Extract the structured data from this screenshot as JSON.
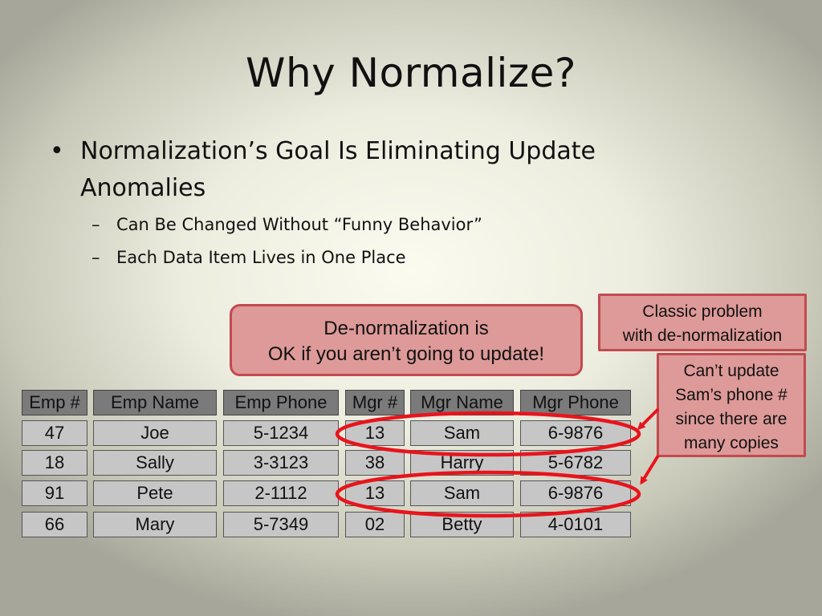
{
  "slide": {
    "title": "Why Normalize?",
    "bullet": {
      "marker": "•",
      "text": "Normalization’s Goal Is Eliminating Update Anomalies",
      "subitems": [
        {
          "marker": "–",
          "text": "Can Be Changed Without “Funny Behavior”"
        },
        {
          "marker": "–",
          "text": "Each Data Item Lives in One Place"
        }
      ]
    }
  },
  "callouts": {
    "denormalization": {
      "line1": "De-normalization is",
      "line2": "OK if you aren’t going to update!"
    },
    "classic_problem": {
      "line1": "Classic problem",
      "line2": "with de-normalization"
    },
    "cant_update": {
      "line1": "Can’t update",
      "line2": "Sam’s phone #",
      "line3": "since there are",
      "line4": "many copies"
    }
  },
  "table": {
    "headers": [
      "Emp #",
      "Emp Name",
      "Emp Phone",
      "Mgr #",
      "Mgr Name",
      "Mgr Phone"
    ],
    "rows": [
      [
        "47",
        "Joe",
        "5-1234",
        "13",
        "Sam",
        "6-9876"
      ],
      [
        "18",
        "Sally",
        "3-3123",
        "38",
        "Harry",
        "5-6782"
      ],
      [
        "91",
        "Pete",
        "2-1112",
        "13",
        "Sam",
        "6-9876"
      ],
      [
        "66",
        "Mary",
        "5-7349",
        "02",
        "Betty",
        "4-0101"
      ]
    ]
  },
  "colors": {
    "callout_fill": "#dd9a98",
    "callout_border": "#c24a50",
    "highlight_ring": "#e8141c",
    "header_fill": "#7a7a7a",
    "cell_fill": "#c6c6c6"
  }
}
